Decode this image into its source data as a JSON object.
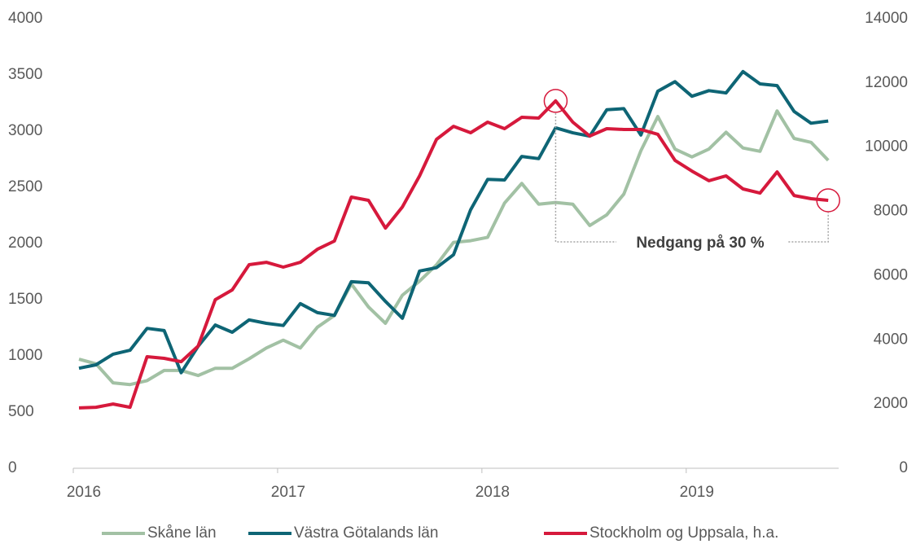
{
  "chart_data": {
    "type": "line",
    "x": [
      2016,
      2016.083,
      2016.167,
      2016.25,
      2016.333,
      2016.417,
      2016.5,
      2016.583,
      2016.667,
      2016.75,
      2016.833,
      2016.917,
      2017,
      2017.083,
      2017.167,
      2017.25,
      2017.333,
      2017.417,
      2017.5,
      2017.583,
      2017.667,
      2017.75,
      2017.833,
      2017.917,
      2018,
      2018.083,
      2018.167,
      2018.25,
      2018.333,
      2018.417,
      2018.5,
      2018.583,
      2018.667,
      2018.75,
      2018.833,
      2018.917,
      2019,
      2019.083,
      2019.167,
      2019.25,
      2019.333,
      2019.417,
      2019.5,
      2019.583,
      2019.667
    ],
    "series": [
      {
        "name": "Skåne län",
        "color": "#a2c1a4",
        "values": [
          970,
          930,
          760,
          745,
          780,
          870,
          870,
          825,
          890,
          890,
          975,
          1070,
          1140,
          1070,
          1255,
          1360,
          1640,
          1435,
          1290,
          1540,
          1665,
          1810,
          2010,
          2025,
          2055,
          2360,
          2535,
          2350,
          2365,
          2350,
          2160,
          2255,
          2440,
          2825,
          3130,
          2840,
          2770,
          2840,
          2990,
          2850,
          2820,
          3180,
          2935,
          2900,
          2740
        ]
      },
      {
        "name": "Västra Götalands län",
        "color": "#0e6575",
        "values": [
          890,
          920,
          1015,
          1050,
          1245,
          1225,
          850,
          1085,
          1275,
          1210,
          1320,
          1290,
          1270,
          1465,
          1385,
          1360,
          1660,
          1650,
          1485,
          1335,
          1755,
          1785,
          1900,
          2300,
          2570,
          2565,
          2775,
          2755,
          3030,
          2985,
          2955,
          3190,
          3200,
          2965,
          3355,
          3440,
          3310,
          3360,
          3340,
          3530,
          3420,
          3405,
          3175,
          3070,
          3090
        ]
      },
      {
        "name": "Stockholm og Uppsala, h.a.",
        "color": "#d6193c",
        "axis": "y2",
        "values": [
          1880,
          1900,
          2000,
          1900,
          3475,
          3425,
          3320,
          3805,
          5250,
          5555,
          6340,
          6415,
          6265,
          6415,
          6820,
          7075,
          8445,
          8345,
          7480,
          8140,
          9105,
          10245,
          10650,
          10450,
          10780,
          10575,
          10930,
          10905,
          11440,
          10780,
          10345,
          10575,
          10550,
          10550,
          10400,
          9590,
          9255,
          8955,
          9105,
          8700,
          8570,
          9230,
          8495,
          8395,
          8345
        ]
      }
    ],
    "xlim": [
      2016,
      2019.75
    ],
    "xticks": [
      2016,
      2017,
      2018,
      2019
    ],
    "ylim": [
      0,
      4000
    ],
    "yticks": [
      0,
      500,
      1000,
      1500,
      2000,
      2500,
      3000,
      3500,
      4000
    ],
    "y2lim": [
      0,
      14000
    ],
    "y2ticks": [
      0,
      2000,
      4000,
      6000,
      8000,
      10000,
      12000,
      14000
    ],
    "annotations": [
      {
        "text": "Nedgang på 30 %"
      }
    ],
    "legend": "bottom"
  }
}
